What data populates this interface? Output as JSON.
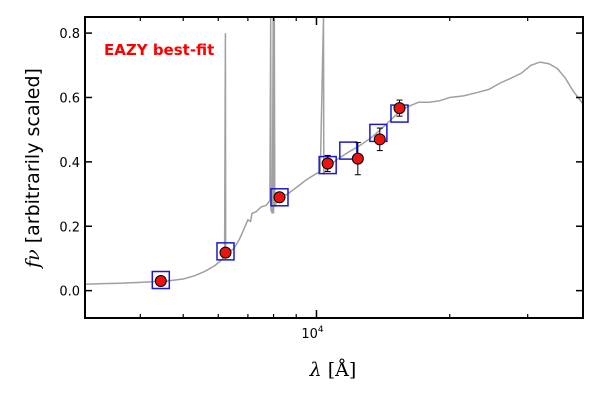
{
  "chart_data": {
    "type": "scatter",
    "x_scale": "log",
    "xlim": [
      3000,
      40000
    ],
    "ylim": [
      -0.085,
      0.85
    ],
    "xticks": [
      {
        "value": 10000,
        "base": "10",
        "exp": "4"
      }
    ],
    "x_minor_ticks": [
      4000,
      5000,
      6000,
      7000,
      8000,
      9000,
      20000,
      30000
    ],
    "yticks": [
      0.0,
      0.2,
      0.4,
      0.6,
      0.8
    ],
    "ytick_labels": [
      "0.0",
      "0.2",
      "0.4",
      "0.6",
      "0.8"
    ],
    "xlabel": {
      "symbol": "λ",
      "unit": "[Å]"
    },
    "ylabel": {
      "symbol": "fν",
      "text": "[arbitrarily scaled]"
    },
    "annotation": {
      "text": "EAZY best-fit",
      "color": "#ff0000"
    },
    "colors": {
      "model": "#a0a0a0",
      "photometry": "#ee1111",
      "model_flux": "#1a1acc",
      "errorbar": "#000000"
    },
    "photometry": [
      {
        "x": 4450,
        "y": 0.03,
        "err": 0.008
      },
      {
        "x": 6230,
        "y": 0.118,
        "err": 0.01
      },
      {
        "x": 8250,
        "y": 0.29,
        "err": 0.012
      },
      {
        "x": 10600,
        "y": 0.395,
        "err": 0.025
      },
      {
        "x": 12400,
        "y": 0.41,
        "err": 0.05
      },
      {
        "x": 13900,
        "y": 0.47,
        "err": 0.035
      },
      {
        "x": 15400,
        "y": 0.567,
        "err": 0.025
      }
    ],
    "model_fluxes": [
      {
        "x": 4450,
        "y": 0.033
      },
      {
        "x": 6230,
        "y": 0.122
      },
      {
        "x": 8250,
        "y": 0.29
      },
      {
        "x": 10600,
        "y": 0.39
      },
      {
        "x": 11800,
        "y": 0.435
      },
      {
        "x": 13800,
        "y": 0.49
      },
      {
        "x": 15400,
        "y": 0.55
      }
    ],
    "model_spectrum": [
      [
        3000,
        0.02
      ],
      [
        3300,
        0.022
      ],
      [
        3600,
        0.023
      ],
      [
        3900,
        0.025
      ],
      [
        4200,
        0.027
      ],
      [
        4600,
        0.03
      ],
      [
        5000,
        0.036
      ],
      [
        5300,
        0.046
      ],
      [
        5600,
        0.06
      ],
      [
        5900,
        0.078
      ],
      [
        6100,
        0.095
      ],
      [
        6200,
        0.107
      ],
      [
        6228,
        0.8
      ],
      [
        6236,
        0.112
      ],
      [
        6300,
        0.118
      ],
      [
        6500,
        0.13
      ],
      [
        6700,
        0.16
      ],
      [
        6900,
        0.2
      ],
      [
        7000,
        0.22
      ],
      [
        7100,
        0.215
      ],
      [
        7150,
        0.24
      ],
      [
        7300,
        0.245
      ],
      [
        7500,
        0.26
      ],
      [
        7700,
        0.265
      ],
      [
        7850,
        0.28
      ],
      [
        7880,
        0.85
      ],
      [
        7895,
        0.25
      ],
      [
        7950,
        0.24
      ],
      [
        7985,
        0.85
      ],
      [
        8000,
        0.24
      ],
      [
        8030,
        0.85
      ],
      [
        8050,
        0.26
      ],
      [
        8150,
        0.28
      ],
      [
        8300,
        0.29
      ],
      [
        8600,
        0.3
      ],
      [
        9000,
        0.32
      ],
      [
        9500,
        0.345
      ],
      [
        9900,
        0.36
      ],
      [
        10200,
        0.37
      ],
      [
        10370,
        0.85
      ],
      [
        10390,
        0.365
      ],
      [
        10700,
        0.39
      ],
      [
        11200,
        0.41
      ],
      [
        11800,
        0.43
      ],
      [
        12500,
        0.45
      ],
      [
        13300,
        0.475
      ],
      [
        14200,
        0.51
      ],
      [
        15100,
        0.545
      ],
      [
        16000,
        0.57
      ],
      [
        17000,
        0.585
      ],
      [
        18000,
        0.585
      ],
      [
        19000,
        0.59
      ],
      [
        20000,
        0.6
      ],
      [
        21500,
        0.605
      ],
      [
        23000,
        0.615
      ],
      [
        24500,
        0.625
      ],
      [
        26000,
        0.645
      ],
      [
        27500,
        0.66
      ],
      [
        29000,
        0.675
      ],
      [
        30500,
        0.7
      ],
      [
        32000,
        0.71
      ],
      [
        33500,
        0.705
      ],
      [
        35000,
        0.69
      ],
      [
        36500,
        0.66
      ],
      [
        38000,
        0.62
      ],
      [
        39500,
        0.59
      ],
      [
        40000,
        0.58
      ]
    ]
  }
}
